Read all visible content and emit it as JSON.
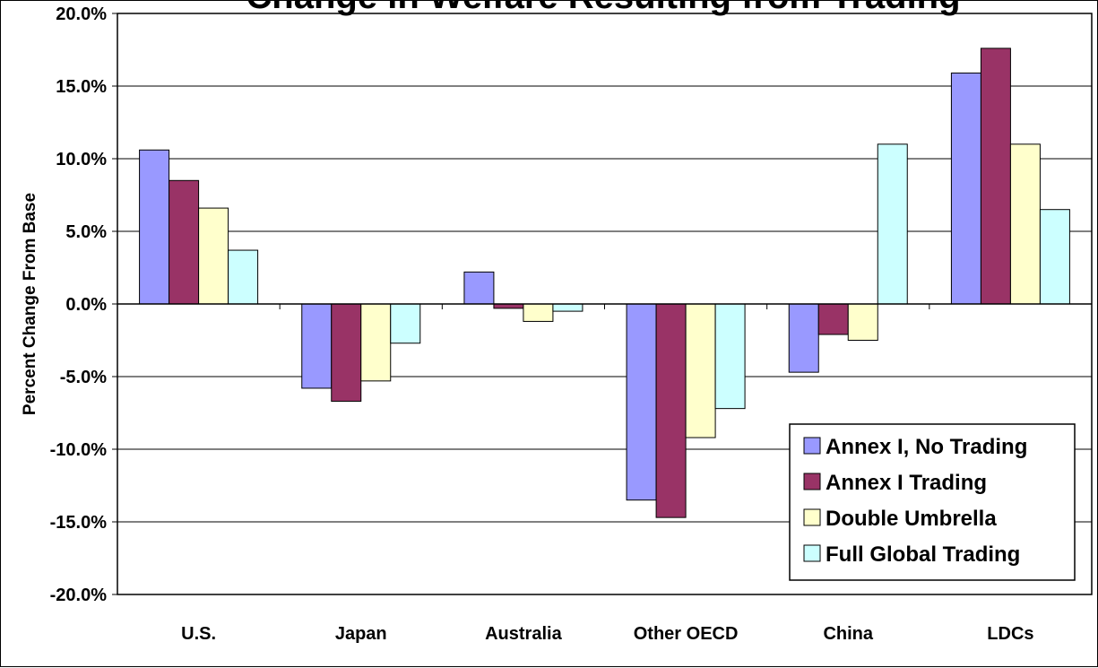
{
  "chart_data": {
    "type": "bar",
    "title": "Change in Welfare Resulting from Trading",
    "xlabel": "",
    "ylabel": "Percent Change From Base",
    "ylim": [
      -20,
      20
    ],
    "y_ticks": [
      20,
      15,
      10,
      5,
      0,
      -5,
      -10,
      -15,
      -20
    ],
    "y_tick_labels": [
      "20.0%",
      "15.0%",
      "10.0%",
      "5.0%",
      "0.0%",
      "-5.0%",
      "-10.0%",
      "-15.0%",
      "-20.0%"
    ],
    "categories": [
      "U.S.",
      "Japan",
      "Australia",
      "Other OECD",
      "China",
      "LDCs"
    ],
    "grid": "horizontal",
    "legend_position": "bottom-right",
    "series": [
      {
        "name": "Annex I, No Trading",
        "color": "#9999ff",
        "values": [
          10.6,
          -5.8,
          2.2,
          -13.5,
          -4.7,
          15.9
        ]
      },
      {
        "name": "Annex I Trading",
        "color": "#993366",
        "values": [
          8.5,
          -6.7,
          -0.3,
          -14.7,
          -2.1,
          17.6
        ]
      },
      {
        "name": "Double Umbrella",
        "color": "#ffffcc",
        "values": [
          6.6,
          -5.3,
          -1.2,
          -9.2,
          -2.5,
          11.0
        ]
      },
      {
        "name": "Full Global Trading",
        "color": "#ccffff",
        "values": [
          3.7,
          -2.7,
          -0.5,
          -7.2,
          11.0,
          6.5
        ]
      }
    ]
  }
}
